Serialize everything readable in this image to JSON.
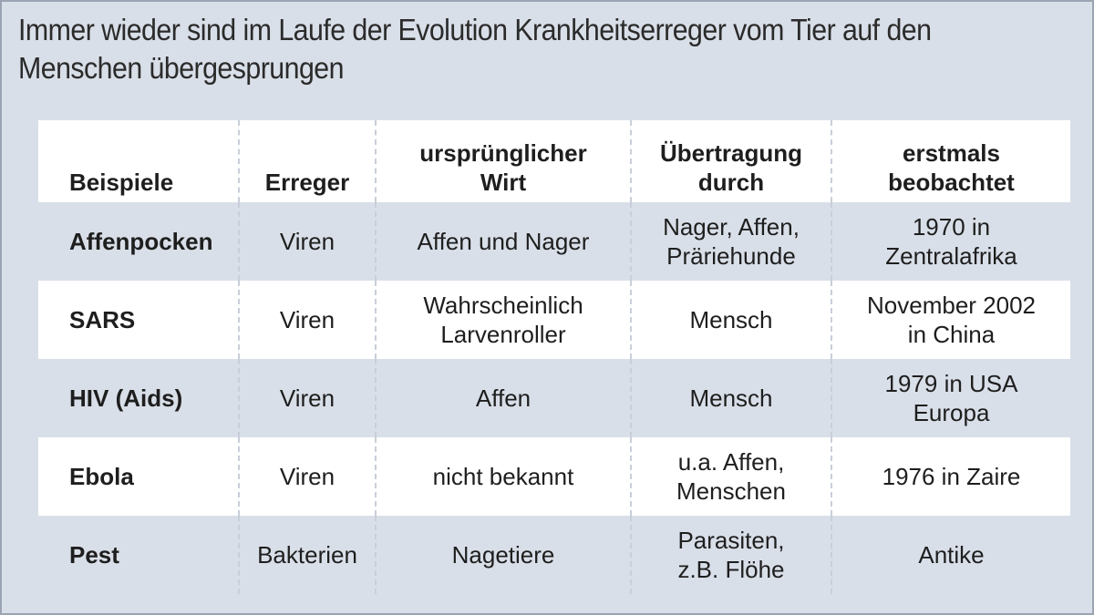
{
  "title": "Immer wieder sind im Laufe der Evolution Krankheitserreger vom Tier auf den Menschen übergesprungen",
  "columns": [
    "Beispiele",
    "Erreger",
    "ursprünglicher\nWirt",
    "Übertragung\ndurch",
    "erstmals\nbeobachtet"
  ],
  "rows": [
    [
      "Affenpocken",
      "Viren",
      "Affen und Nager",
      "Nager, Affen,\nPräriehunde",
      "1970 in\nZentralafrika"
    ],
    [
      "SARS",
      "Viren",
      "Wahrscheinlich\nLarvenroller",
      "Mensch",
      "November 2002\nin China"
    ],
    [
      "HIV (Aids)",
      "Viren",
      "Affen",
      "Mensch",
      "1979 in USA\nEuropa"
    ],
    [
      "Ebola",
      "Viren",
      "nicht bekannt",
      "u.a. Affen,\nMenschen",
      "1976 in Zaire"
    ],
    [
      "Pest",
      "Bakterien",
      "Nagetiere",
      "Parasiten,\nz.B. Flöhe",
      "Antike"
    ]
  ],
  "colors": {
    "panel_background": "#d9dfe8",
    "row_highlight": "#ffffff",
    "text": "#1e1e1e"
  }
}
